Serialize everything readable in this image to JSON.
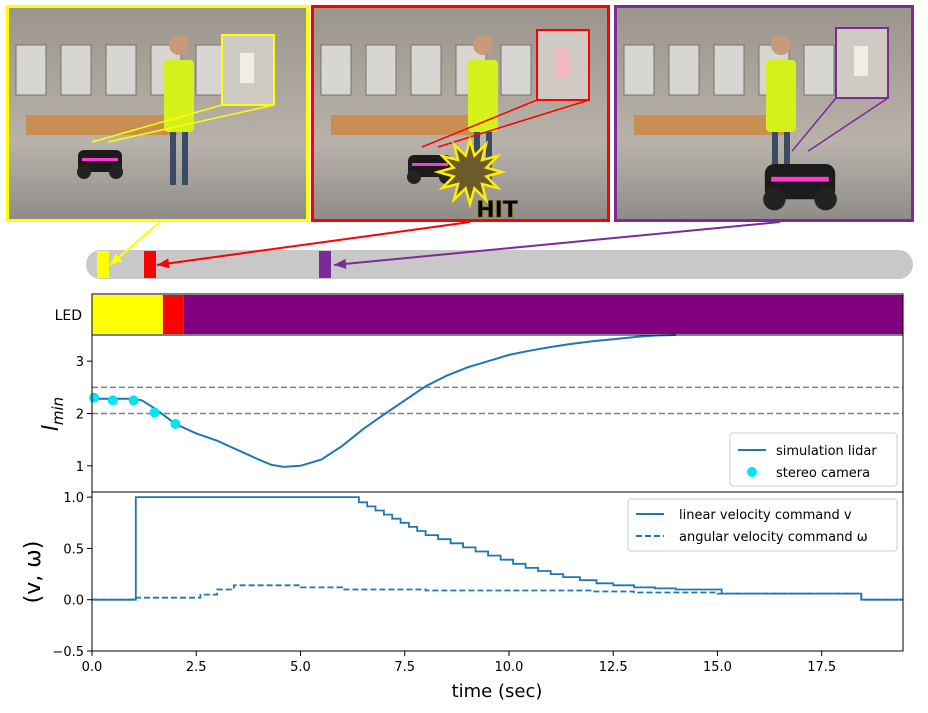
{
  "photos": [
    {
      "frame_color": "#ffff00"
    },
    {
      "frame_color": "#ff0000",
      "caption": "HIT"
    },
    {
      "frame_color": "#7b2a9a"
    }
  ],
  "timeline": {
    "bar_color": "#c8c8c8",
    "markers": [
      "#ffff00",
      "#ff0000",
      "#7b2a9a"
    ]
  },
  "chart_data": [
    {
      "type": "heatmap",
      "ylabel": "LED",
      "segments": [
        {
          "from": 0.0,
          "to": 1.7,
          "color": "#ffff00"
        },
        {
          "from": 1.7,
          "to": 2.2,
          "color": "#ff0000"
        },
        {
          "from": 2.2,
          "to": 19.45,
          "color": "#800080"
        }
      ]
    },
    {
      "type": "line",
      "ylabel": "l_min",
      "xlim": [
        0,
        19.45
      ],
      "ylim": [
        0.5,
        3.5
      ],
      "yticks": [
        1,
        2,
        3
      ],
      "hlines": [
        2.0,
        2.5
      ],
      "legend": "lower-right",
      "series": [
        {
          "name": "simulation lidar",
          "color": "#1f77b4",
          "x": [
            0,
            0.5,
            1.0,
            1.2,
            1.5,
            1.8,
            2.0,
            2.5,
            3.0,
            3.5,
            4.0,
            4.3,
            4.6,
            5.0,
            5.5,
            6.0,
            6.5,
            7.0,
            7.5,
            8.0,
            8.5,
            9.0,
            9.5,
            10.0,
            10.5,
            11.0,
            11.5,
            12.0,
            12.5,
            13.0,
            13.5,
            14.0
          ],
          "y": [
            2.28,
            2.28,
            2.28,
            2.25,
            2.1,
            1.92,
            1.8,
            1.62,
            1.48,
            1.3,
            1.12,
            1.02,
            0.98,
            1.0,
            1.12,
            1.38,
            1.7,
            1.98,
            2.25,
            2.52,
            2.72,
            2.88,
            3.0,
            3.12,
            3.2,
            3.27,
            3.33,
            3.38,
            3.42,
            3.46,
            3.49,
            3.52
          ]
        },
        {
          "name": "stereo camera",
          "color": "#00e5ee",
          "type": "scatter",
          "x": [
            0.05,
            0.5,
            1.0,
            1.5,
            2.0
          ],
          "y": [
            2.3,
            2.25,
            2.25,
            2.02,
            1.8
          ]
        }
      ]
    },
    {
      "type": "line",
      "ylabel": "(v, ω)",
      "xlabel": "time (sec)",
      "xlim": [
        0,
        19.45
      ],
      "ylim": [
        -0.5,
        1.05
      ],
      "yticks": [
        "−0.5",
        "0.0",
        "0.5",
        "1.0"
      ],
      "xticks": [
        "0.0",
        "2.5",
        "5.0",
        "7.5",
        "10.0",
        "12.5",
        "15.0",
        "17.5"
      ],
      "legend": "top-right",
      "series": [
        {
          "name": "linear velocity command v",
          "color": "#1f77b4",
          "style": "solid",
          "x": [
            0,
            1.0,
            1.05,
            6.2,
            6.4,
            6.6,
            6.8,
            7.0,
            7.2,
            7.4,
            7.6,
            7.8,
            8.0,
            8.3,
            8.6,
            8.9,
            9.2,
            9.5,
            9.8,
            10.1,
            10.4,
            10.7,
            11.0,
            11.3,
            11.7,
            12.1,
            12.5,
            13.0,
            13.5,
            14.0,
            14.5,
            15.0,
            15.1,
            18.3,
            18.45,
            19.45
          ],
          "y": [
            0,
            0,
            1.0,
            1.0,
            0.95,
            0.91,
            0.87,
            0.83,
            0.79,
            0.75,
            0.71,
            0.67,
            0.63,
            0.59,
            0.55,
            0.51,
            0.47,
            0.43,
            0.39,
            0.35,
            0.31,
            0.28,
            0.25,
            0.22,
            0.19,
            0.16,
            0.14,
            0.12,
            0.11,
            0.1,
            0.1,
            0.1,
            0.06,
            0.06,
            0.0,
            0.0
          ]
        },
        {
          "name": "angular velocity command ω",
          "color": "#1f77b4",
          "style": "dashed",
          "x": [
            0,
            1.0,
            1.05,
            2.3,
            2.6,
            3.0,
            3.4,
            4.5,
            5.0,
            6.0,
            7.0,
            8.0,
            10.0,
            12.0,
            13.0,
            15.0,
            18.3,
            18.45,
            19.45
          ],
          "y": [
            0,
            0,
            0.02,
            0.02,
            0.05,
            0.1,
            0.14,
            0.14,
            0.12,
            0.1,
            0.1,
            0.09,
            0.09,
            0.08,
            0.07,
            0.06,
            0.06,
            0.0,
            0.0
          ]
        }
      ]
    }
  ]
}
